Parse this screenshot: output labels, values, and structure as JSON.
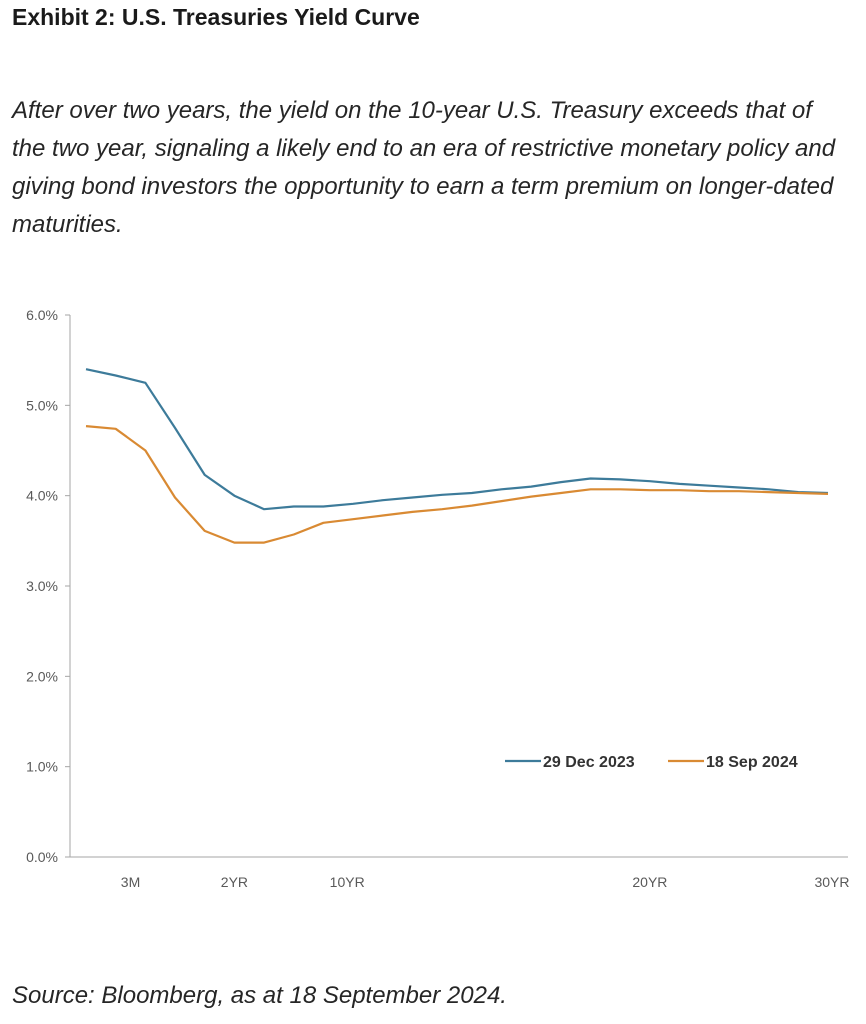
{
  "header": {
    "title": "Exhibit 2: U.S. Treasuries Yield Curve",
    "subtitle": "After over two years, the yield on the 10-year U.S. Treasury exceeds that of the two year, signaling a likely end to an era of restrictive monetary policy and giving bond investors the opportunity to earn a term premium on longer-dated maturities."
  },
  "footer": {
    "source": "Source: Bloomberg, as at 18 September 2024."
  },
  "chart_data": {
    "type": "line",
    "ylim": [
      0,
      6
    ],
    "yticks": [
      0,
      1,
      2,
      3,
      4,
      5,
      6
    ],
    "ytick_labels": [
      "0.0%",
      "1.0%",
      "2.0%",
      "3.0%",
      "4.0%",
      "5.0%",
      "6.0%"
    ],
    "x_tick_labels": [
      "3M",
      "2YR",
      "10YR",
      "20YR",
      "30YR"
    ],
    "x_points": 26,
    "legend_position": "bottom-right",
    "grid": false,
    "series": [
      {
        "name": "29 Dec 2023",
        "color": "#3d7b9a",
        "values": [
          5.4,
          5.33,
          5.25,
          4.75,
          4.23,
          4.0,
          3.85,
          3.88,
          3.88,
          3.91,
          3.95,
          3.98,
          4.01,
          4.03,
          4.07,
          4.1,
          4.15,
          4.19,
          4.18,
          4.16,
          4.13,
          4.11,
          4.09,
          4.07,
          4.04,
          4.03
        ]
      },
      {
        "name": "18 Sep 2024",
        "color": "#d98a33",
        "values": [
          4.77,
          4.74,
          4.5,
          3.98,
          3.61,
          3.48,
          3.48,
          3.57,
          3.7,
          3.74,
          3.78,
          3.82,
          3.85,
          3.89,
          3.94,
          3.99,
          4.03,
          4.07,
          4.07,
          4.06,
          4.06,
          4.05,
          4.05,
          4.04,
          4.03,
          4.02
        ]
      }
    ]
  }
}
